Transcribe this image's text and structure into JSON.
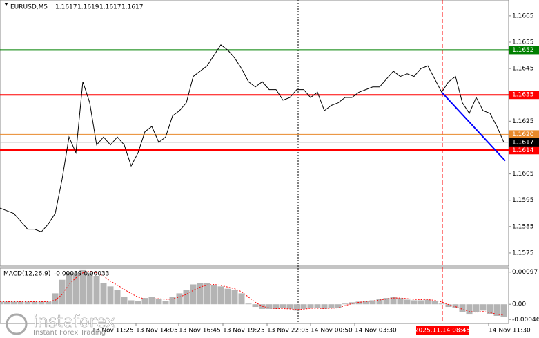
{
  "chart_data": [
    {
      "type": "line",
      "title": "EURUSD,M5",
      "ohlc": [
        1.1617,
        1.1619,
        1.1617,
        1.1617
      ],
      "color": "#000000",
      "values": [
        1.1592,
        1.1591,
        1.159,
        1.1587,
        1.1584,
        1.1584,
        1.1583,
        1.1586,
        1.159,
        1.1603,
        1.1619,
        1.1613,
        1.164,
        1.1632,
        1.1616,
        1.1619,
        1.1616,
        1.1619,
        1.1616,
        1.1608,
        1.1613,
        1.1621,
        1.1623,
        1.1617,
        1.1619,
        1.1627,
        1.1629,
        1.1632,
        1.1642,
        1.1644,
        1.1646,
        1.165,
        1.1654,
        1.1652,
        1.1649,
        1.1645,
        1.164,
        1.1638,
        1.164,
        1.1637,
        1.1637,
        1.1633,
        1.1634,
        1.1637,
        1.1637,
        1.1634,
        1.1636,
        1.1629,
        1.1631,
        1.1632,
        1.1634,
        1.1634,
        1.1636,
        1.1637,
        1.1638,
        1.1638,
        1.1641,
        1.1644,
        1.1642,
        1.1643,
        1.1642,
        1.1645,
        1.1646,
        1.1641,
        1.1636,
        1.164,
        1.1642,
        1.1632,
        1.1628,
        1.1634,
        1.1629,
        1.1628,
        1.1623,
        1.1617
      ],
      "xlim": [
        0,
        73.7
      ],
      "ylim": [
        1.157,
        1.1671
      ],
      "yticks": [
        1.1665,
        1.1655,
        1.1645,
        1.1625,
        1.1605,
        1.1595,
        1.1585,
        1.1575
      ],
      "xticks": [
        {
          "value": 13.3,
          "label": "13 Nov 11:25"
        },
        {
          "value": 19.7,
          "label": "13 Nov 14:05"
        },
        {
          "value": 25.9,
          "label": "13 Nov 16:45"
        },
        {
          "value": 32.3,
          "label": "13 Nov 19:25"
        },
        {
          "value": 38.7,
          "label": "13 Nov 22:05"
        },
        {
          "value": 45,
          "label": "14 Nov 00:50"
        },
        {
          "value": 51.4,
          "label": "14 Nov 03:30"
        },
        {
          "value": 70.8,
          "label": "14 Nov 11:30"
        }
      ],
      "levels": [
        {
          "value": 1.1652,
          "color": "#008000"
        },
        {
          "value": 1.1635,
          "color": "#ff0000"
        },
        {
          "value": 1.162,
          "label": "1.1620",
          "color": "#e8892b"
        },
        {
          "value": 1.1614,
          "color": "#ff0000",
          "style": "thick"
        }
      ],
      "trendline": {
        "x": [
          64,
          73.2
        ],
        "values": [
          1.1636,
          1.161
        ],
        "color": "#0000ff"
      },
      "vline": 43.2,
      "cursor": {
        "value": 64.1,
        "label": "2025.11.14 08:45"
      },
      "watermark": {
        "brand": "instaforex",
        "tagline": "Instant Forex Trading"
      }
    },
    {
      "type": "macd",
      "title": "MACD(12,26,9)",
      "series": [
        {
          "color": "#b4b4b4",
          "values": [
            8e-05,
            8e-05,
            8e-05,
            8e-05,
            8e-05,
            8e-05,
            8e-05,
            8e-05,
            0.00033,
            0.00074,
            0.00095,
            0.00095,
            0.00105,
            0.00095,
            0.00085,
            0.00064,
            0.00054,
            0.00044,
            0.00023,
            0.00012,
            0.0001,
            0.00019,
            0.00023,
            0.00016,
            0.0001,
            0.00023,
            0.00033,
            0.00044,
            0.0006,
            0.00064,
            0.00064,
            0.00058,
            0.00054,
            0.00047,
            0.00044,
            0.00033,
            2e-05,
            -8e-05,
            -0.00014,
            -0.00014,
            -0.00014,
            -0.00012,
            -0.00014,
            -0.00019,
            -0.00014,
            -0.0001,
            -0.00012,
            -0.00014,
            -0.00012,
            -0.0001,
            2e-05,
            6e-05,
            8e-05,
            0.0001,
            0.00012,
            0.00016,
            0.00019,
            0.00023,
            0.00019,
            0.00014,
            0.00012,
            0.00012,
            0.00014,
            0.0001,
            2e-05,
            -8e-05,
            -0.00012,
            -0.00023,
            -0.00031,
            -0.00023,
            -0.00019,
            -0.00029,
            -0.00035,
            -0.00039
          ]
        },
        {
          "color": "#ff0000",
          "values": [
            8e-05,
            8e-05,
            8e-05,
            8e-05,
            8e-05,
            8e-05,
            8e-05,
            8e-05,
            0.00012,
            0.0003,
            0.0006,
            0.0008,
            0.00095,
            0.001,
            0.00095,
            0.00085,
            0.0007,
            0.00058,
            0.00045,
            0.00032,
            0.00022,
            0.00016,
            0.00016,
            0.00017,
            0.00015,
            0.00016,
            0.00022,
            0.0003,
            0.00042,
            0.00052,
            0.00058,
            0.0006,
            0.00057,
            0.00052,
            0.00047,
            0.00038,
            0.00022,
            6e-05,
            -6e-05,
            -0.00011,
            -0.00013,
            -0.00013,
            -0.00014,
            -0.00016,
            -0.00015,
            -0.00012,
            -0.00012,
            -0.00013,
            -0.00012,
            -0.00011,
            -4e-05,
            2e-05,
            6e-05,
            8e-05,
            0.0001,
            0.00013,
            0.00016,
            0.00019,
            0.00019,
            0.00017,
            0.00015,
            0.00014,
            0.00014,
            0.00012,
            7e-05,
            -1e-05,
            -7e-05,
            -0.00015,
            -0.00022,
            -0.00024,
            -0.00022,
            -0.00025,
            -0.0003,
            -0.00033
          ]
        }
      ],
      "xlim": [
        0,
        73.7
      ],
      "ylim": [
        -0.00058,
        0.00109
      ],
      "yticks": [
        0.00097,
        {
          "value": 0,
          "label": "0.00"
        },
        -0.00046
      ]
    }
  ]
}
